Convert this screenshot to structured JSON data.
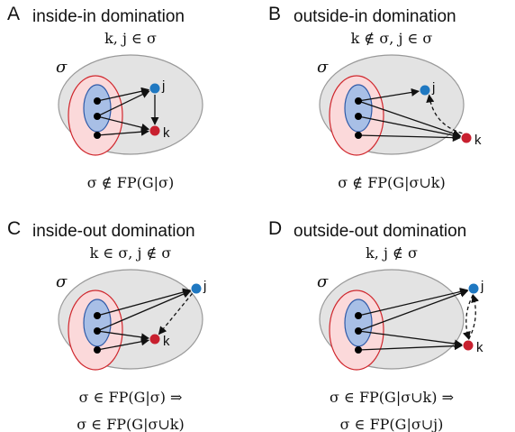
{
  "panels": [
    {
      "letter": "A",
      "title": "inside-in domination",
      "condition": "k, j ∈ σ",
      "sigma": "σ",
      "j": "j",
      "k": "k",
      "formula": [
        "σ ∉ FP(G|σ)"
      ]
    },
    {
      "letter": "B",
      "title": "outside-in domination",
      "condition": "k ∉ σ, j ∈ σ",
      "sigma": "σ",
      "j": "j",
      "k": "k",
      "formula": [
        "σ ∉ FP(G|σ∪k)"
      ]
    },
    {
      "letter": "C",
      "title": "inside-out domination",
      "condition": "k ∈ σ, j ∉ σ",
      "sigma": "σ",
      "j": "j",
      "k": "k",
      "formula": [
        "σ ∈ FP(G|σ) ⇒",
        "σ ∈ FP(G|σ∪k)"
      ]
    },
    {
      "letter": "D",
      "title": "outside-out domination",
      "condition": "k, j ∉ σ",
      "sigma": "σ",
      "j": "j",
      "k": "k",
      "formula": [
        "σ ∈ FP(G|σ∪k) ⇒",
        "σ ∈ FP(G|σ∪j)"
      ]
    }
  ]
}
